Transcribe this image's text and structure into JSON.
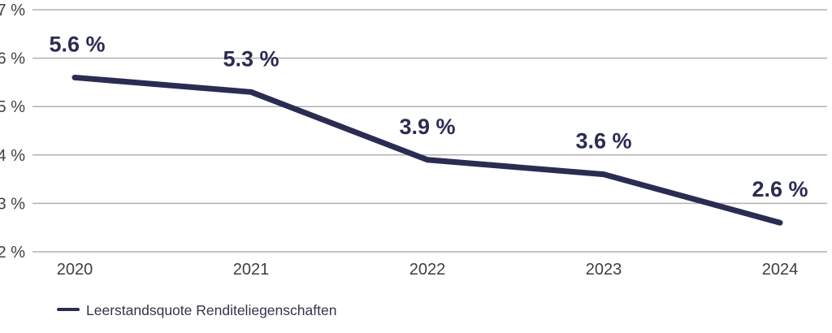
{
  "chart_data": {
    "type": "line",
    "title": "",
    "xlabel": "",
    "ylabel": "",
    "categories": [
      "2020",
      "2021",
      "2022",
      "2023",
      "2024"
    ],
    "series": [
      {
        "name": "Leerstandsquote Renditeliegenschaften",
        "values": [
          5.6,
          5.3,
          3.9,
          3.6,
          2.6
        ]
      }
    ],
    "data_labels": [
      "5.6 %",
      "5.3 %",
      "3.9 %",
      "3.6 %",
      "2.6 %"
    ],
    "y_ticks": [
      {
        "value": 7,
        "label": "7 %"
      },
      {
        "value": 6,
        "label": "6 %"
      },
      {
        "value": 5,
        "label": "5 %"
      },
      {
        "value": 4,
        "label": "4 %"
      },
      {
        "value": 3,
        "label": "3 %"
      },
      {
        "value": 2,
        "label": "2 %"
      }
    ],
    "ylim": [
      2,
      7
    ],
    "grid": true,
    "legend": "Leerstandsquote Renditeliegenschaften",
    "legend_position": "bottom-left",
    "colors": {
      "line": "#2a2c52",
      "grid": "#b0b0b0",
      "axis_text": "#3f3f3f",
      "data_label": "#2a2c52",
      "legend_marker": "#2a2c52",
      "legend_text": "#34344a"
    }
  }
}
